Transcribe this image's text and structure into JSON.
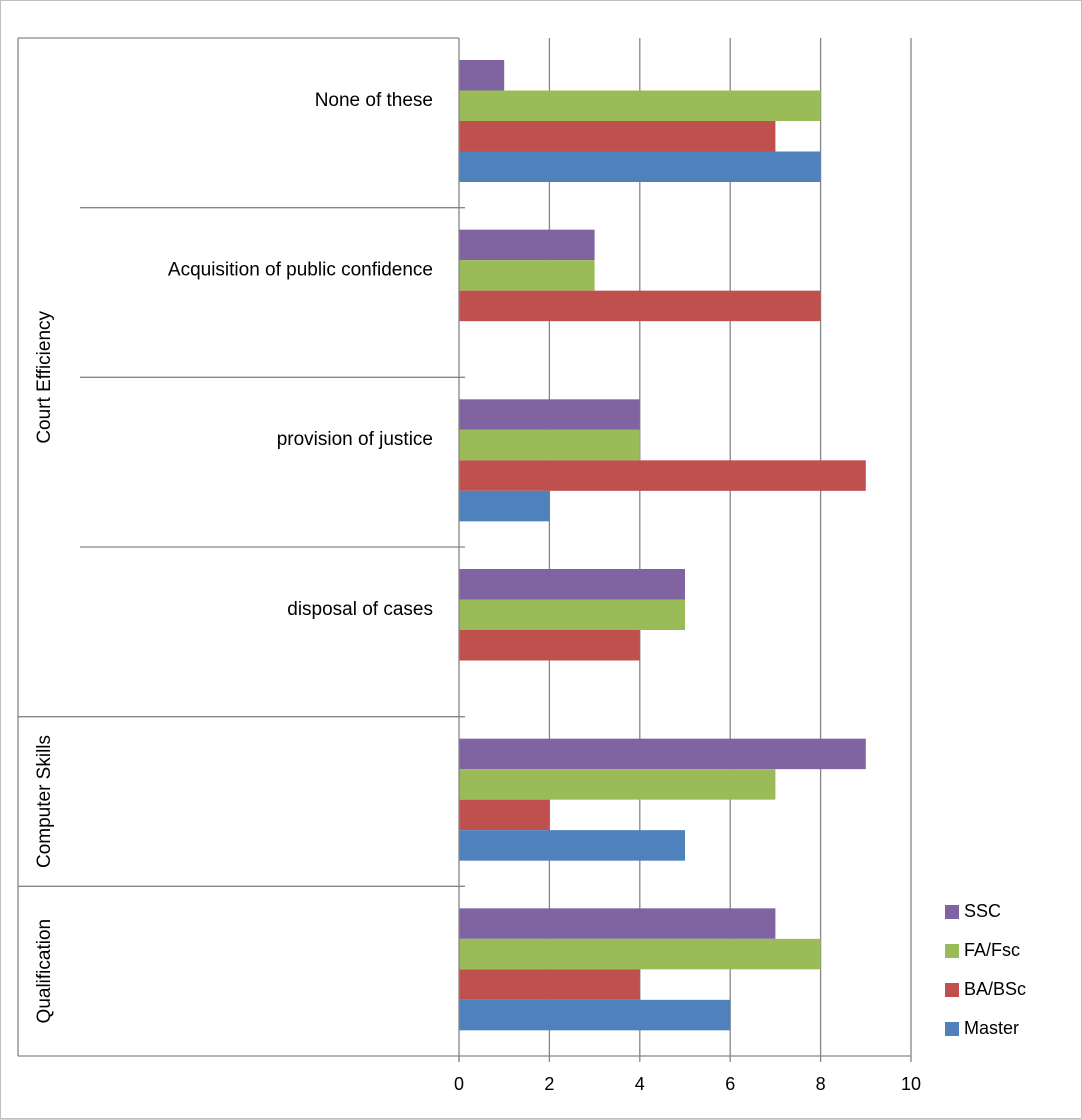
{
  "chart_data": {
    "type": "bar",
    "orientation": "horizontal",
    "categories": [
      "None of these",
      "Acquisition of  public confidence",
      "provision of  justice",
      "disposal of cases",
      "",
      ""
    ],
    "groups": [
      {
        "label": "Court Efficiency",
        "categories": [
          0,
          1,
          2,
          3
        ]
      },
      {
        "label": "Computer Skills",
        "categories": [
          4
        ]
      },
      {
        "label": "Qualification",
        "categories": [
          5
        ]
      }
    ],
    "series": [
      {
        "name": "SSC",
        "color": "#8064A2",
        "values": [
          1,
          3,
          4,
          5,
          9,
          7
        ]
      },
      {
        "name": "FA/Fsc",
        "color": "#9BBB59",
        "values": [
          8,
          3,
          4,
          5,
          7,
          8
        ]
      },
      {
        "name": "BA/BSc",
        "color": "#C0504D",
        "values": [
          7,
          8,
          9,
          4,
          2,
          4
        ]
      },
      {
        "name": "Master",
        "color": "#4F81BD",
        "values": [
          8,
          0,
          2,
          0,
          5,
          6
        ]
      }
    ],
    "xlim": [
      0,
      10
    ],
    "xticks": [
      0,
      2,
      4,
      6,
      8,
      10
    ],
    "grid": true,
    "legend_position": "bottom-right"
  }
}
